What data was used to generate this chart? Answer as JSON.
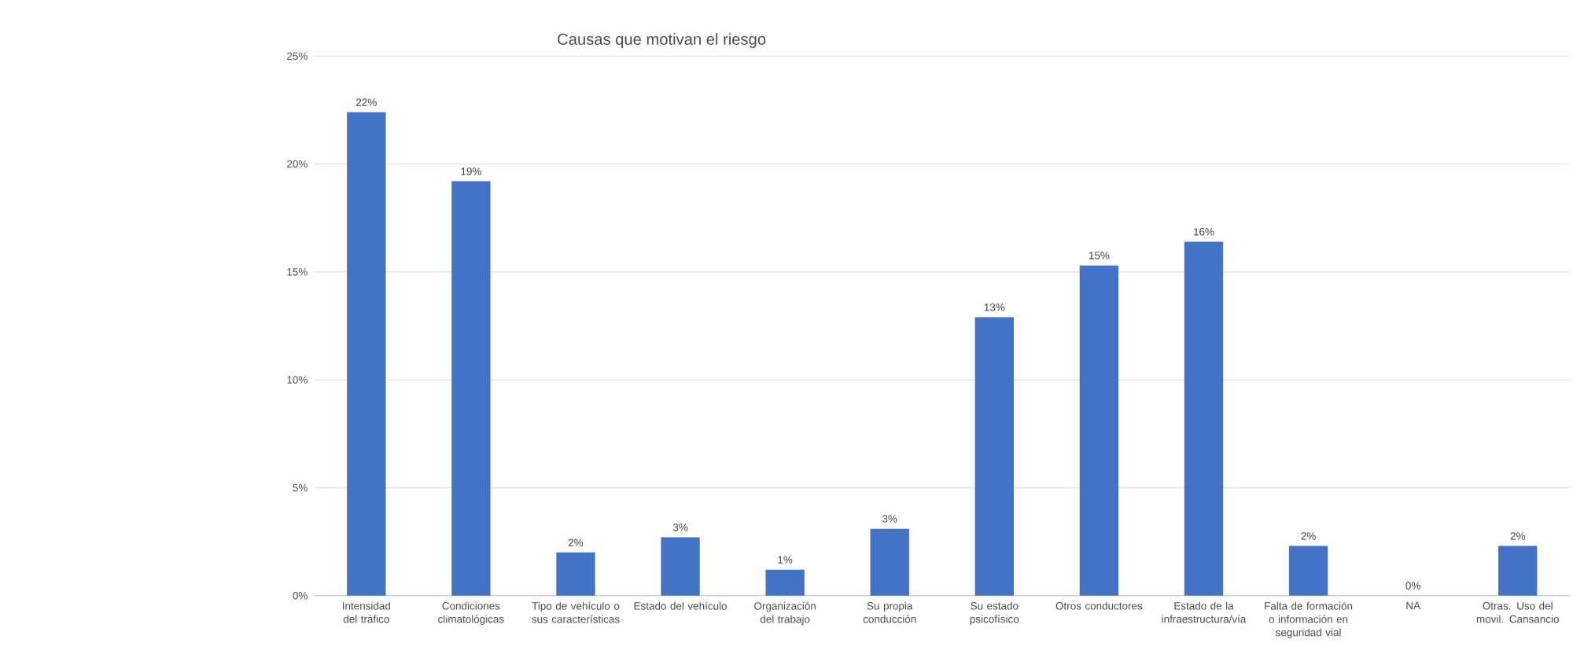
{
  "chart_data": {
    "type": "bar",
    "title": "Causas que motivan el riesgo",
    "categories": [
      "Intensidad del tráfico",
      "Condiciones climatológicas",
      "Tipo de vehículo o sus características",
      "Estado del vehículo",
      "Organización del trabajo",
      "Su propia conducción",
      "Su estado psicofísico",
      "Otros conductores",
      "Estado de la infraestructura/vía",
      "Falta de formación o información en seguridad vial",
      "NA",
      "Otras. Uso del movil. Cansancio"
    ],
    "values": [
      22.4,
      19.2,
      2.0,
      2.7,
      1.2,
      3.1,
      12.9,
      15.3,
      16.4,
      2.3,
      0,
      2.3
    ],
    "value_labels": [
      "22%",
      "19%",
      "2%",
      "3%",
      "1%",
      "3%",
      "13%",
      "15%",
      "16%",
      "2%",
      "0%",
      "2%"
    ],
    "color": "#4472c4",
    "ylim": [
      0,
      25
    ],
    "yticks": [
      {
        "value": 0,
        "label": "0%"
      },
      {
        "value": 5,
        "label": "5%"
      },
      {
        "value": 10,
        "label": "10%"
      },
      {
        "value": 15,
        "label": "15%"
      },
      {
        "value": 20,
        "label": "20%"
      },
      {
        "value": 25,
        "label": "25%"
      }
    ],
    "grid": "y"
  }
}
